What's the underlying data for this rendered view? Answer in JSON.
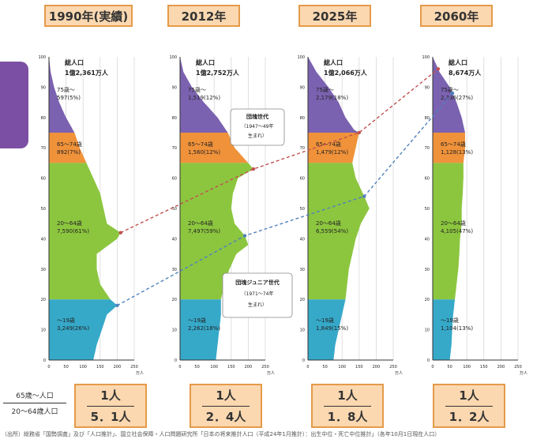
{
  "headers": [
    "1990年(実績)",
    "2012年",
    "2025年",
    "2060年"
  ],
  "ratio_label": {
    "top": "65歳～人口",
    "bottom": "20～64歳人口"
  },
  "ratios": [
    {
      "num": "1人",
      "den": "5．1人"
    },
    {
      "num": "1人",
      "den": "2．4人"
    },
    {
      "num": "1人",
      "den": "1．8人"
    },
    {
      "num": "1人",
      "den": "1．2人"
    }
  ],
  "footnote": "（出所）総務省「国勢調査」及び「人口推計」、国立社会保障・人口問題研究所「日本の将来推計人口（平成24年1月推計）：出生中位・死亡中位推計」（各年10月1日現在人口）",
  "chart_data": [
    {
      "type": "area",
      "title": "1990年(実績)",
      "total_label": "総人口",
      "total_value": "1億2,361万人",
      "xunit": "万人",
      "xlim": [
        0,
        250
      ],
      "ylim": [
        0,
        100
      ],
      "x_ticks": [
        0,
        50,
        100,
        150,
        200,
        250
      ],
      "y_ticks": [
        0,
        10,
        20,
        30,
        40,
        50,
        60,
        70,
        80,
        90,
        100
      ],
      "colors": {
        "age75": "#7b62b0",
        "age65": "#f0923a",
        "age20": "#8cc63f",
        "age0": "#36a9c9"
      },
      "groups": [
        {
          "label": "75歳～",
          "value": "597(5%)",
          "range": [
            75,
            100
          ]
        },
        {
          "label": "65～74歳",
          "value": "892(7%)",
          "range": [
            65,
            75
          ]
        },
        {
          "label": "20～64歳",
          "value": "7,590(61%)",
          "range": [
            20,
            65
          ]
        },
        {
          "label": "～19歳",
          "value": "3,249(26%)",
          "range": [
            0,
            20
          ]
        }
      ],
      "profile": [
        [
          0,
          130
        ],
        [
          5,
          140
        ],
        [
          10,
          155
        ],
        [
          15,
          170
        ],
        [
          18,
          200
        ],
        [
          20,
          180
        ],
        [
          25,
          150
        ],
        [
          30,
          140
        ],
        [
          35,
          140
        ],
        [
          40,
          200
        ],
        [
          42,
          210
        ],
        [
          45,
          170
        ],
        [
          50,
          160
        ],
        [
          55,
          150
        ],
        [
          60,
          130
        ],
        [
          65,
          110
        ],
        [
          70,
          90
        ],
        [
          75,
          75
        ],
        [
          80,
          50
        ],
        [
          85,
          30
        ],
        [
          90,
          15
        ],
        [
          95,
          5
        ],
        [
          100,
          0
        ]
      ]
    },
    {
      "type": "area",
      "title": "2012年",
      "total_label": "総人口",
      "total_value": "1億2,752万人",
      "xunit": "万人",
      "xlim": [
        0,
        250
      ],
      "ylim": [
        0,
        100
      ],
      "x_ticks": [
        0,
        50,
        100,
        150,
        200,
        250
      ],
      "y_ticks": [
        0,
        10,
        20,
        30,
        40,
        50,
        60,
        70,
        80,
        90,
        100
      ],
      "colors": {
        "age75": "#7b62b0",
        "age65": "#f0923a",
        "age20": "#8cc63f",
        "age0": "#36a9c9"
      },
      "groups": [
        {
          "label": "75歳～",
          "value": "1,519(12%)",
          "range": [
            75,
            100
          ]
        },
        {
          "label": "65～74歳",
          "value": "1,560(12%)",
          "range": [
            65,
            75
          ]
        },
        {
          "label": "20～64歳",
          "value": "7,497(59%)",
          "range": [
            20,
            65
          ]
        },
        {
          "label": "～19歳",
          "value": "2,262(18%)",
          "range": [
            0,
            20
          ]
        }
      ],
      "profile": [
        [
          0,
          105
        ],
        [
          5,
          110
        ],
        [
          10,
          115
        ],
        [
          15,
          120
        ],
        [
          20,
          120
        ],
        [
          25,
          130
        ],
        [
          30,
          145
        ],
        [
          35,
          165
        ],
        [
          38,
          200
        ],
        [
          41,
          190
        ],
        [
          45,
          160
        ],
        [
          50,
          150
        ],
        [
          55,
          155
        ],
        [
          60,
          170
        ],
        [
          63,
          215
        ],
        [
          65,
          200
        ],
        [
          70,
          160
        ],
        [
          75,
          140
        ],
        [
          80,
          110
        ],
        [
          85,
          70
        ],
        [
          90,
          35
        ],
        [
          95,
          10
        ],
        [
          100,
          0
        ]
      ]
    },
    {
      "type": "area",
      "title": "2025年",
      "total_label": "総人口",
      "total_value": "1億2,066万人",
      "xunit": "万人",
      "xlim": [
        0,
        250
      ],
      "ylim": [
        0,
        100
      ],
      "x_ticks": [
        0,
        50,
        100,
        150,
        200,
        250
      ],
      "y_ticks": [
        0,
        10,
        20,
        30,
        40,
        50,
        60,
        70,
        80,
        90,
        100
      ],
      "colors": {
        "age75": "#7b62b0",
        "age65": "#f0923a",
        "age20": "#8cc63f",
        "age0": "#36a9c9"
      },
      "groups": [
        {
          "label": "75歳～",
          "value": "2,179(18%)",
          "range": [
            75,
            100
          ]
        },
        {
          "label": "65～74歳",
          "value": "1,479(12%)",
          "range": [
            65,
            75
          ]
        },
        {
          "label": "20～64歳",
          "value": "6,559(54%)",
          "range": [
            20,
            65
          ]
        },
        {
          "label": "～19歳",
          "value": "1,849(15%)",
          "range": [
            0,
            20
          ]
        }
      ],
      "profile": [
        [
          0,
          75
        ],
        [
          5,
          80
        ],
        [
          10,
          90
        ],
        [
          15,
          100
        ],
        [
          20,
          110
        ],
        [
          25,
          115
        ],
        [
          30,
          120
        ],
        [
          35,
          130
        ],
        [
          40,
          140
        ],
        [
          45,
          155
        ],
        [
          50,
          180
        ],
        [
          54,
          165
        ],
        [
          60,
          140
        ],
        [
          65,
          130
        ],
        [
          70,
          140
        ],
        [
          75,
          150
        ],
        [
          76,
          135
        ],
        [
          80,
          110
        ],
        [
          85,
          90
        ],
        [
          90,
          60
        ],
        [
          95,
          25
        ],
        [
          100,
          0
        ]
      ]
    },
    {
      "type": "area",
      "title": "2060年",
      "total_label": "総人口",
      "total_value": "8,674万人",
      "xunit": "万人",
      "xlim": [
        0,
        250
      ],
      "ylim": [
        0,
        100
      ],
      "x_ticks": [
        0,
        50,
        100,
        150,
        200,
        250
      ],
      "y_ticks": [
        0,
        10,
        20,
        30,
        40,
        50,
        60,
        70,
        80,
        90,
        100
      ],
      "colors": {
        "age75": "#7b62b0",
        "age65": "#f0923a",
        "age20": "#8cc63f",
        "age0": "#36a9c9"
      },
      "groups": [
        {
          "label": "75歳～",
          "value": "2,336(27%)",
          "range": [
            75,
            100
          ]
        },
        {
          "label": "65～74歳",
          "value": "1,128(13%)",
          "range": [
            65,
            75
          ]
        },
        {
          "label": "20～64歳",
          "value": "4,105(47%)",
          "range": [
            20,
            65
          ]
        },
        {
          "label": "～19歳",
          "value": "1,104(13%)",
          "range": [
            0,
            20
          ]
        }
      ],
      "profile": [
        [
          0,
          50
        ],
        [
          5,
          55
        ],
        [
          10,
          57
        ],
        [
          15,
          60
        ],
        [
          20,
          65
        ],
        [
          25,
          70
        ],
        [
          30,
          75
        ],
        [
          35,
          78
        ],
        [
          40,
          80
        ],
        [
          45,
          85
        ],
        [
          50,
          85
        ],
        [
          55,
          88
        ],
        [
          60,
          90
        ],
        [
          65,
          90
        ],
        [
          70,
          95
        ],
        [
          75,
          95
        ],
        [
          80,
          85
        ],
        [
          85,
          70
        ],
        [
          90,
          50
        ],
        [
          95,
          20
        ],
        [
          100,
          0
        ]
      ]
    }
  ],
  "annotations": {
    "boomer": {
      "title": "団塊世代",
      "years": "（1947～49年",
      "suffix": "生まれ）"
    },
    "junior": {
      "title": "団塊ジュニア世代",
      "years": "（1971～74年",
      "suffix": "生まれ）"
    }
  }
}
